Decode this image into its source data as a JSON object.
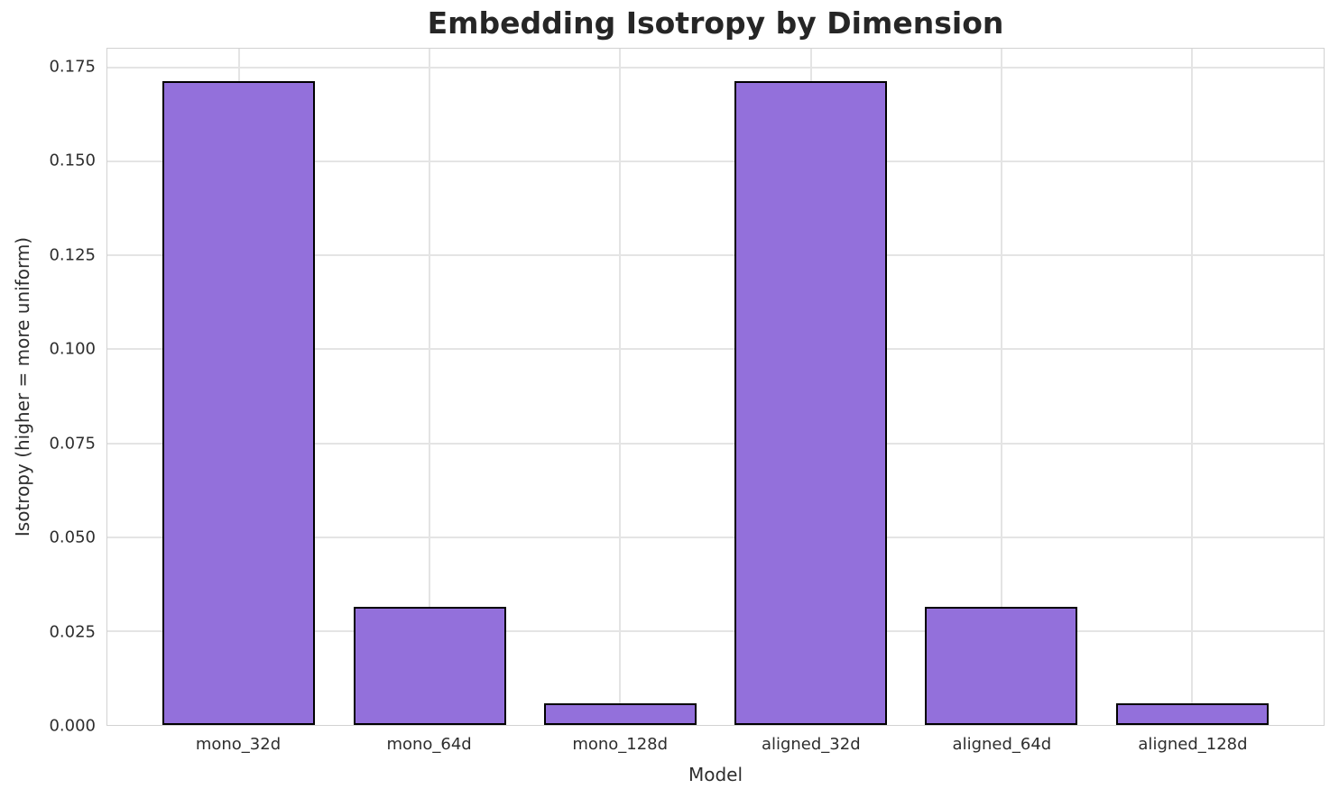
{
  "chart_data": {
    "type": "bar",
    "title": "Embedding Isotropy by Dimension",
    "xlabel": "Model",
    "ylabel": "Isotropy (higher = more uniform)",
    "categories": [
      "mono_32d",
      "mono_64d",
      "mono_128d",
      "aligned_32d",
      "aligned_64d",
      "aligned_128d"
    ],
    "values": [
      0.1714,
      0.0315,
      0.0057,
      0.1714,
      0.0315,
      0.0057
    ],
    "ylim": [
      0,
      0.18
    ],
    "yticks": [
      0,
      0.025,
      0.05,
      0.075,
      0.1,
      0.125,
      0.15,
      0.175
    ],
    "ytick_labels": [
      "0.000",
      "0.025",
      "0.050",
      "0.075",
      "0.100",
      "0.125",
      "0.150",
      "0.175"
    ],
    "xlim": [
      -0.69,
      5.69
    ],
    "bar_width_frac": 0.8,
    "bar_color": "#9370DB",
    "bar_edge_color": "#000000",
    "grid": true,
    "grid_color": "#e4e4e4",
    "background": "#ffffff",
    "legend": "none"
  }
}
